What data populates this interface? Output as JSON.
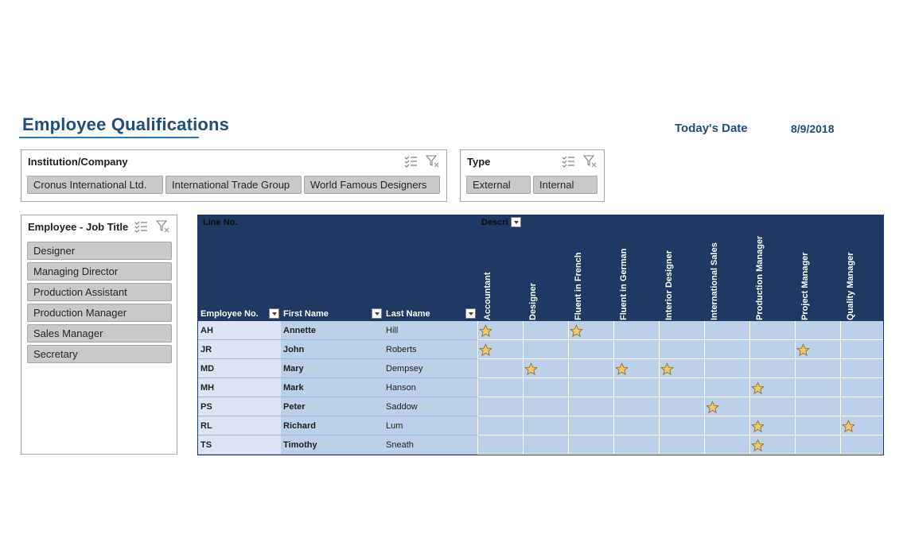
{
  "title": "Employee Qualifications",
  "today": {
    "label": "Today's Date",
    "value": "8/9/2018"
  },
  "institution_slicer": {
    "header": "Institution/Company",
    "items": [
      "Cronus International Ltd.",
      "International Trade Group",
      "World Famous Designers"
    ]
  },
  "type_slicer": {
    "header": "Type",
    "items": [
      "External",
      "Internal"
    ]
  },
  "job_slicer": {
    "header": "Employee - Job Title",
    "items": [
      "Designer",
      "Managing Director",
      "Production Assistant",
      "Production Manager",
      "Sales Manager",
      "Secretary"
    ]
  },
  "pivot": {
    "line_no_label": "Line No.",
    "description_label": "Descri",
    "employee_no_label": "Employee No.",
    "first_name_label": "First Name",
    "last_name_label": "Last Name",
    "qualifications": [
      "Accountant",
      "Designer",
      "Fluent in French",
      "Fluent in German",
      "Interior Designer",
      "International Sales",
      "Production Manager",
      "Project Manager",
      "Quality Manager"
    ],
    "rows": [
      {
        "no": "AH",
        "first": "Annette",
        "last": "Hill",
        "stars": [
          0,
          2
        ]
      },
      {
        "no": "JR",
        "first": "John",
        "last": "Roberts",
        "stars": [
          0,
          7
        ]
      },
      {
        "no": "MD",
        "first": "Mary",
        "last": "Dempsey",
        "stars": [
          1,
          3,
          4
        ]
      },
      {
        "no": "MH",
        "first": "Mark",
        "last": "Hanson",
        "stars": [
          6
        ]
      },
      {
        "no": "PS",
        "first": "Peter",
        "last": "Saddow",
        "stars": [
          5
        ]
      },
      {
        "no": "RL",
        "first": "Richard",
        "last": "Lum",
        "stars": [
          6,
          8
        ]
      },
      {
        "no": "TS",
        "first": "Timothy",
        "last": "Sneath",
        "stars": [
          6
        ]
      }
    ]
  },
  "icons": {
    "multiselect": "multi-select-icon",
    "clear_filter": "clear-filter-icon",
    "star": "star-icon"
  },
  "colors": {
    "title": "#1f4e79",
    "header_bg": "#203864",
    "grid_bg": "#bdd0e9",
    "star_fill": "#f2c66d",
    "slicer_item": "#c9c9c9"
  }
}
